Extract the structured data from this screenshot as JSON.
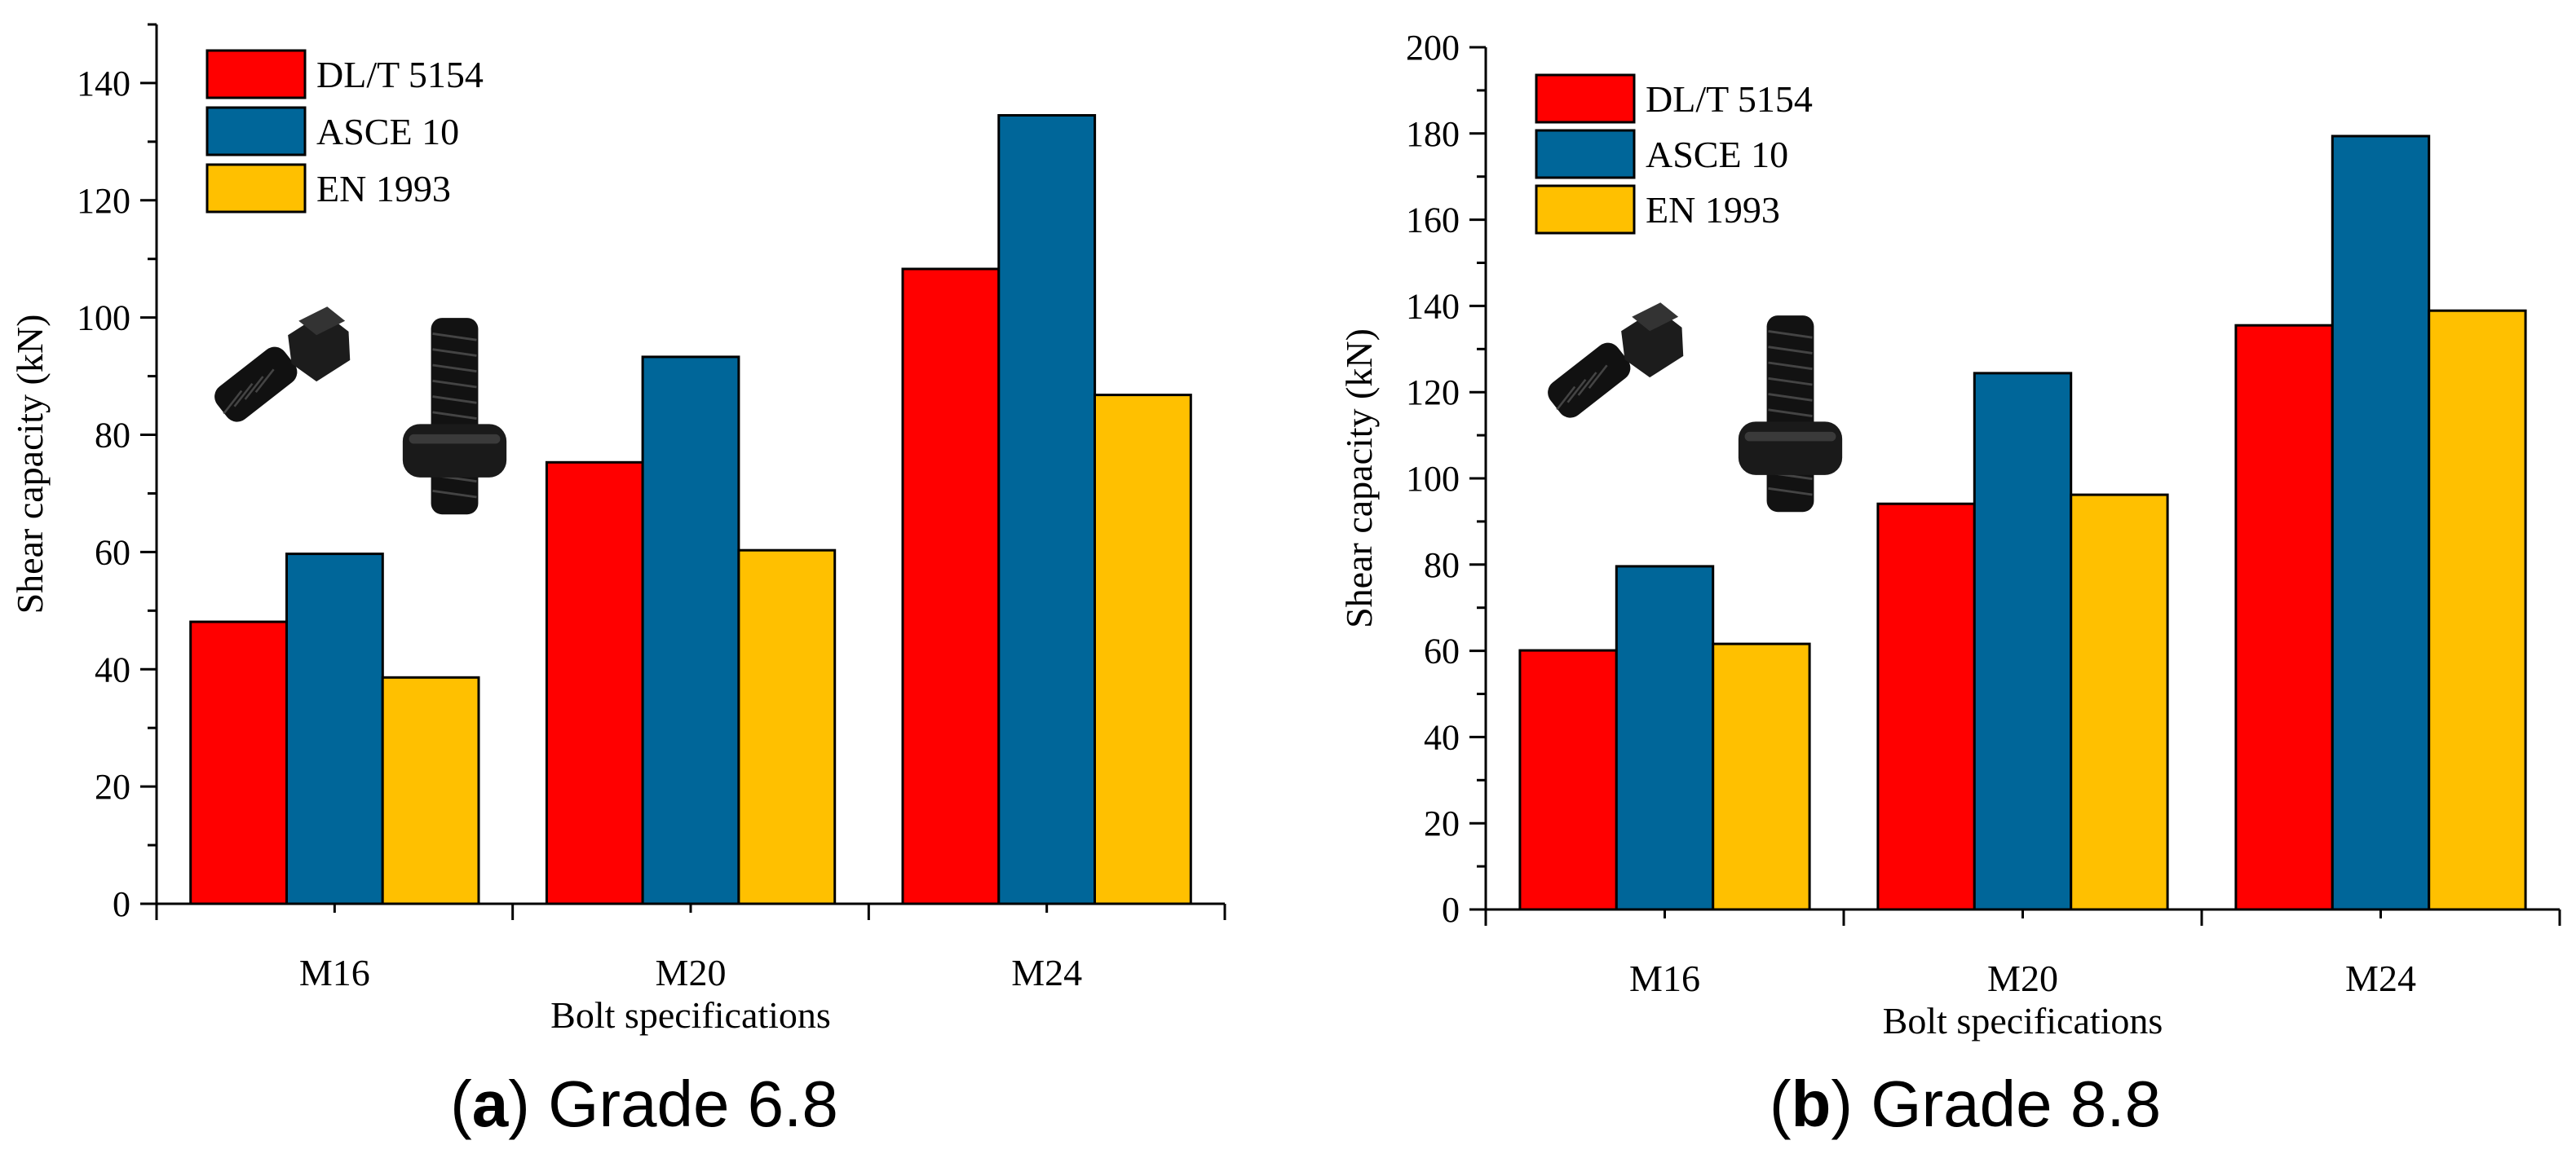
{
  "charts": [
    {
      "caption": {
        "letter": "a",
        "text": "Grade 6.8"
      },
      "chart_data": {
        "type": "bar",
        "title": "",
        "xlabel": "Bolt specifications",
        "ylabel": "Shear capacity (kN)",
        "categories": [
          "M16",
          "M20",
          "M24"
        ],
        "ylim": [
          0,
          150
        ],
        "yticks": [
          0,
          20,
          40,
          60,
          80,
          100,
          120,
          140
        ],
        "legend_position": "top-left",
        "series": [
          {
            "name": "DL/T 5154",
            "color": "#ff0000",
            "values": [
              48.1,
              75.3,
              108.3
            ]
          },
          {
            "name": "ASCE 10",
            "color": "#006699",
            "values": [
              59.7,
              93.3,
              134.5
            ]
          },
          {
            "name": "EN 1993",
            "color": "#ffc000",
            "values": [
              38.6,
              60.3,
              86.8
            ]
          }
        ]
      }
    },
    {
      "caption": {
        "letter": "b",
        "text": "Grade 8.8"
      },
      "chart_data": {
        "type": "bar",
        "title": "",
        "xlabel": "Bolt specifications",
        "ylabel": "Shear capacity (kN)",
        "categories": [
          "M16",
          "M20",
          "M24"
        ],
        "ylim": [
          0,
          200
        ],
        "yticks": [
          0,
          20,
          40,
          60,
          80,
          100,
          120,
          140,
          160,
          180,
          200
        ],
        "legend_position": "top-left",
        "series": [
          {
            "name": "DL/T 5154",
            "color": "#ff0000",
            "values": [
              60.1,
              94.1,
              135.5
            ]
          },
          {
            "name": "ASCE 10",
            "color": "#006699",
            "values": [
              79.6,
              124.4,
              179.4
            ]
          },
          {
            "name": "EN 1993",
            "color": "#ffc000",
            "values": [
              61.6,
              96.2,
              138.9
            ]
          }
        ]
      }
    }
  ]
}
